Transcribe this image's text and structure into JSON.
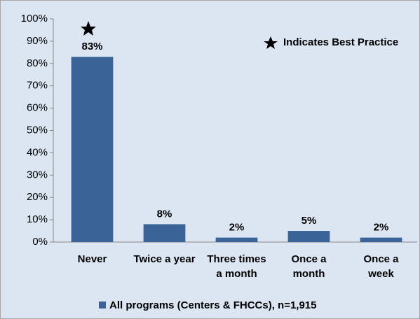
{
  "chart_data": {
    "type": "bar",
    "categories": [
      "Never",
      "Twice a year",
      "Three times\na month",
      "Once a\nmonth",
      "Once a\nweek"
    ],
    "series": [
      {
        "name": "All programs (Centers & FHCCs), n=1,915",
        "color": "#3a6497",
        "values": [
          83,
          8,
          2,
          5,
          2
        ],
        "value_labels": [
          "83%",
          "8%",
          "2%",
          "5%",
          "2%"
        ]
      }
    ],
    "ylim": [
      0,
      100
    ],
    "yticks": [
      {
        "value": 0,
        "label": "0%"
      },
      {
        "value": 10,
        "label": "10%"
      },
      {
        "value": 20,
        "label": "20%"
      },
      {
        "value": 30,
        "label": "30%"
      },
      {
        "value": 40,
        "label": "40%"
      },
      {
        "value": 50,
        "label": "50%"
      },
      {
        "value": 60,
        "label": "60%"
      },
      {
        "value": 70,
        "label": "70%"
      },
      {
        "value": 80,
        "label": "80%"
      },
      {
        "value": 90,
        "label": "90%"
      },
      {
        "value": 100,
        "label": "100%"
      }
    ],
    "annotation": "Indicates Best Practice",
    "grid": false
  }
}
